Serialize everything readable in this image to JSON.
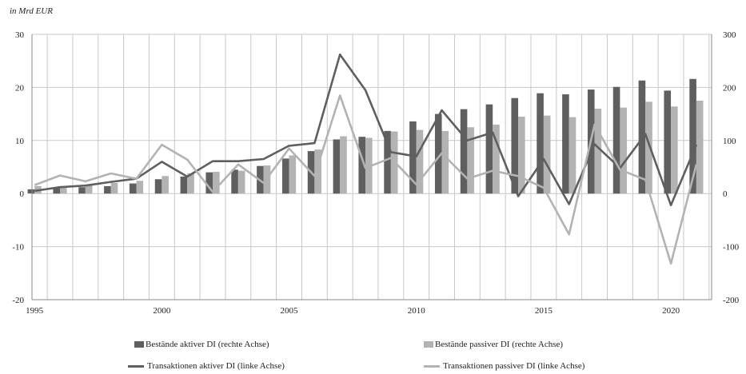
{
  "chart_data": {
    "type": "bar+line",
    "unit_label": "in Mrd EUR",
    "categories": [
      1995,
      1996,
      1997,
      1998,
      1999,
      2000,
      2001,
      2002,
      2003,
      2004,
      2005,
      2006,
      2007,
      2008,
      2009,
      2010,
      2011,
      2012,
      2013,
      2014,
      2015,
      2016,
      2017,
      2018,
      2019,
      2020,
      2021
    ],
    "x_ticks": [
      "1995",
      "2000",
      "2005",
      "2010",
      "2015",
      "2020"
    ],
    "left_axis": {
      "min": -20,
      "max": 30,
      "ticks": [
        "-20",
        "-10",
        "0",
        "10",
        "20",
        "30"
      ]
    },
    "right_axis": {
      "min": -200,
      "max": 300,
      "ticks": [
        "-200",
        "-100",
        "0",
        "100",
        "200",
        "300"
      ]
    },
    "grid": true,
    "series": [
      {
        "name": "Bestände aktiver DI (rechte Achse)",
        "kind": "bar",
        "axis": "right",
        "color": "#5f5f5f",
        "values": [
          8,
          10,
          12,
          14,
          19,
          27,
          32,
          40,
          45,
          52,
          66,
          80,
          102,
          107,
          118,
          136,
          150,
          159,
          168,
          180,
          189,
          187,
          196,
          201,
          213,
          194,
          216
        ]
      },
      {
        "name": "Bestände passiver DI (rechte Achse)",
        "kind": "bar",
        "axis": "right",
        "color": "#b3b3b3",
        "values": [
          14,
          14,
          16,
          20,
          24,
          33,
          38,
          41,
          43,
          53,
          72,
          83,
          108,
          105,
          117,
          120,
          118,
          125,
          130,
          145,
          147,
          144,
          160,
          162,
          173,
          164,
          175
        ]
      },
      {
        "name": "Transaktionen aktiver DI (linke Achse)",
        "kind": "line",
        "axis": "left",
        "color": "#5f5f5f",
        "values": [
          0.5,
          1.2,
          1.5,
          2.2,
          2.8,
          6.0,
          3.2,
          6.1,
          6.1,
          6.5,
          9.0,
          9.5,
          26.2,
          19.5,
          7.8,
          7.0,
          15.7,
          10.0,
          11.5,
          -0.5,
          6.5,
          -2.0,
          9.3,
          4.8,
          11.2,
          -2.2,
          9.2
        ]
      },
      {
        "name": "Transaktionen passiver DI (linke Achse)",
        "kind": "line",
        "axis": "left",
        "color": "#b3b3b3",
        "values": [
          1.6,
          3.4,
          2.3,
          3.8,
          2.8,
          9.2,
          6.4,
          0.3,
          5.5,
          2.0,
          8.5,
          3.3,
          18.5,
          4.8,
          6.7,
          1.7,
          7.6,
          2.8,
          4.3,
          3.3,
          1.1,
          -7.7,
          13.0,
          4.5,
          2.6,
          -13.2,
          5.5
        ]
      }
    ]
  }
}
